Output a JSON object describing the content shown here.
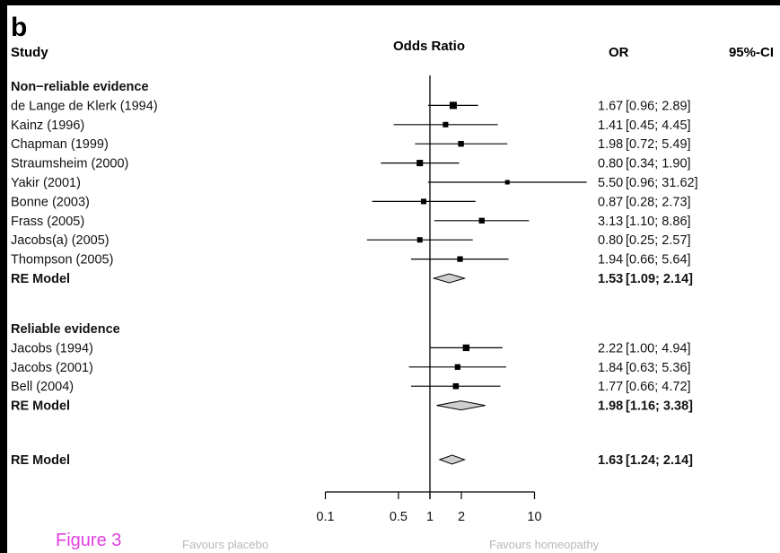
{
  "panel_label": "b",
  "figure_caption": "Figure 3",
  "colors": {
    "line": "#000000",
    "text": "#111111",
    "diamond_fill": "#cfcfcf",
    "caption": "#e040e0",
    "favours_text": "#b8b8b8"
  },
  "chart_data": {
    "type": "forest",
    "scale": "log",
    "headers": {
      "study": "Study",
      "effect": "Odds Ratio",
      "or": "OR",
      "ci": "95%-CI"
    },
    "xaxis": {
      "ticks": [
        0.1,
        0.5,
        1,
        2,
        10
      ],
      "tick_labels": [
        "0.1",
        "0.5",
        "1",
        "2",
        "10"
      ],
      "xlim": [
        0.1,
        10
      ],
      "reference_line": 1
    },
    "favours": {
      "left": "Favours placebo",
      "right": "Favours homeopathy"
    },
    "groups": [
      {
        "title": "Non−reliable evidence",
        "studies": [
          {
            "name": "de Lange de Klerk (1994)",
            "or": 1.67,
            "lo": 0.96,
            "hi": 2.89,
            "or_text": "1.67",
            "ci_text": "[0.96; 2.89]"
          },
          {
            "name": "Kainz (1996)",
            "or": 1.41,
            "lo": 0.45,
            "hi": 4.45,
            "or_text": "1.41",
            "ci_text": "[0.45; 4.45]"
          },
          {
            "name": "Chapman (1999)",
            "or": 1.98,
            "lo": 0.72,
            "hi": 5.49,
            "or_text": "1.98",
            "ci_text": "[0.72; 5.49]"
          },
          {
            "name": "Straumsheim (2000)",
            "or": 0.8,
            "lo": 0.34,
            "hi": 1.9,
            "or_text": "0.80",
            "ci_text": "[0.34; 1.90]"
          },
          {
            "name": "Yakir (2001)",
            "or": 5.5,
            "lo": 0.96,
            "hi": 31.62,
            "or_text": "5.50",
            "ci_text": "[0.96; 31.62]"
          },
          {
            "name": "Bonne (2003)",
            "or": 0.87,
            "lo": 0.28,
            "hi": 2.73,
            "or_text": "0.87",
            "ci_text": "[0.28; 2.73]"
          },
          {
            "name": "Frass (2005)",
            "or": 3.13,
            "lo": 1.1,
            "hi": 8.86,
            "or_text": "3.13",
            "ci_text": "[1.10; 8.86]"
          },
          {
            "name": "Jacobs(a) (2005)",
            "or": 0.8,
            "lo": 0.25,
            "hi": 2.57,
            "or_text": "0.80",
            "ci_text": "[0.25; 2.57]"
          },
          {
            "name": "Thompson (2005)",
            "or": 1.94,
            "lo": 0.66,
            "hi": 5.64,
            "or_text": "1.94",
            "ci_text": "[0.66; 5.64]"
          }
        ],
        "summary": {
          "name": "RE Model",
          "or": 1.53,
          "lo": 1.09,
          "hi": 2.14,
          "or_text": "1.53",
          "ci_text": "[1.09; 2.14]"
        }
      },
      {
        "title": "Reliable evidence",
        "studies": [
          {
            "name": "Jacobs (1994)",
            "or": 2.22,
            "lo": 1.0,
            "hi": 4.94,
            "or_text": "2.22",
            "ci_text": "[1.00; 4.94]"
          },
          {
            "name": "Jacobs (2001)",
            "or": 1.84,
            "lo": 0.63,
            "hi": 5.36,
            "or_text": "1.84",
            "ci_text": "[0.63; 5.36]"
          },
          {
            "name": "Bell (2004)",
            "or": 1.77,
            "lo": 0.66,
            "hi": 4.72,
            "or_text": "1.77",
            "ci_text": "[0.66; 4.72]"
          }
        ],
        "summary": {
          "name": "RE Model",
          "or": 1.98,
          "lo": 1.16,
          "hi": 3.38,
          "or_text": "1.98",
          "ci_text": "[1.16; 3.38]"
        }
      }
    ],
    "overall": {
      "name": "RE Model",
      "or": 1.63,
      "lo": 1.24,
      "hi": 2.14,
      "or_text": "1.63",
      "ci_text": "[1.24; 2.14]"
    }
  }
}
